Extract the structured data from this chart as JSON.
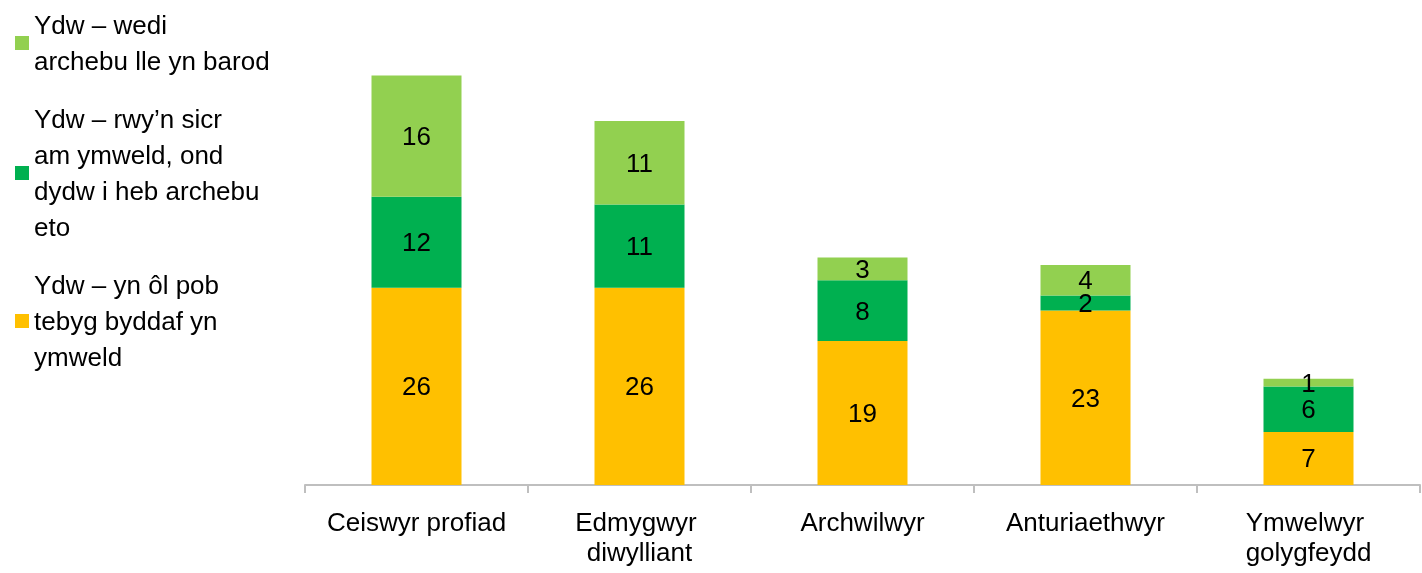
{
  "chart_data": {
    "type": "bar",
    "stacked": true,
    "data_labels": true,
    "legend": "left",
    "categories": [
      "Ceiswyr profiad",
      "Edmygwyr diwylliant",
      "Archwilwyr",
      "Anturiaethwyr",
      "Ymwelwyr golygfeydd"
    ],
    "series": [
      {
        "name": "Ydw – yn ôl pob tebyg byddaf yn ymweld",
        "color": "#ffc000",
        "values": [
          26,
          26,
          19,
          23,
          7
        ]
      },
      {
        "name": "Ydw – rwy’n sicr am ymweld, ond dydw i heb archebu eto",
        "color": "#00b050",
        "values": [
          12,
          11,
          8,
          2,
          6
        ]
      },
      {
        "name": "Ydw – wedi archebu lle yn barod",
        "color": "#92d050",
        "values": [
          16,
          11,
          3,
          4,
          1
        ]
      }
    ]
  }
}
